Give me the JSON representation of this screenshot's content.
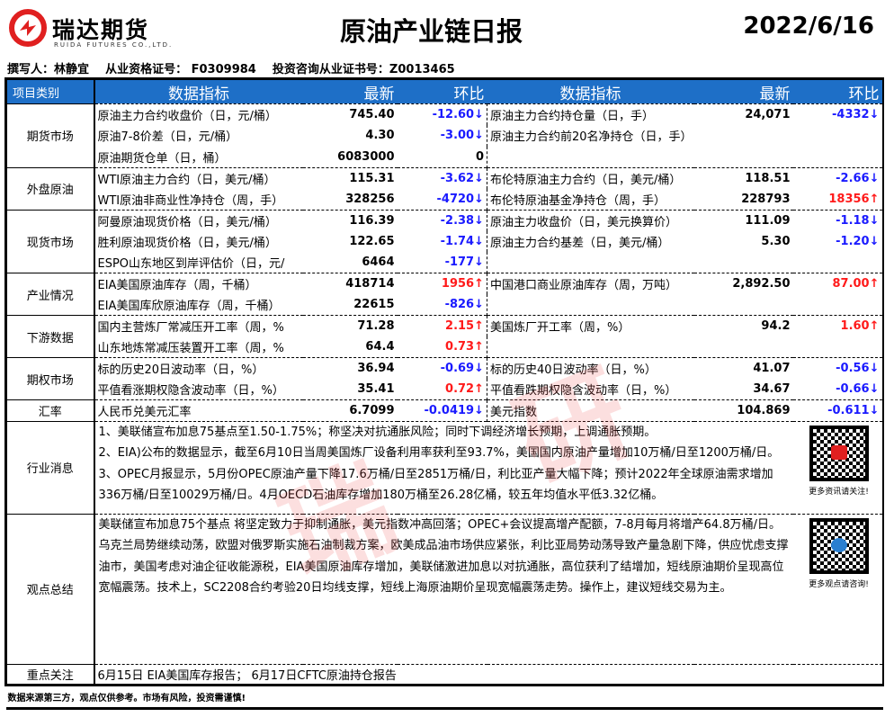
{
  "header": {
    "logo_cn": "瑞达期货",
    "logo_en": "RUIDA FUTURES CO.,LTD.",
    "title": "原油产业链日报",
    "date": "2022/6/16",
    "brand_color": "#e02020"
  },
  "author_line": "撰写人：林静宜    从业资格证号： F0309984    投资咨询从业证书号：Z0013465",
  "columns": {
    "category": "项目类别",
    "metric": "数据指标",
    "latest": "最新",
    "change": "环比",
    "metric2": "数据指标",
    "latest2": "最新",
    "change2": "环比",
    "header_color": "#1e6fc7"
  },
  "sections": [
    {
      "category": "期货市场",
      "rows": [
        [
          "原油主力合约收盘价（日，元/桶）",
          "745.40",
          "-12.60↓",
          "dn",
          "原油主力合约持仓量（日，手）",
          "24,071",
          "-4332↓",
          "dn"
        ],
        [
          "原油7-8价差（日，元/桶）",
          "4.30",
          "-3.00↓",
          "dn",
          "原油主力合约前20名净持仓（日，手）",
          "",
          "",
          ""
        ],
        [
          "原油期货仓单（日，桶）",
          "6083000",
          "0",
          "",
          "",
          "",
          "",
          ""
        ]
      ]
    },
    {
      "category": "外盘原油",
      "rows": [
        [
          "WTI原油主力合约（日，美元/桶）",
          "115.31",
          "-3.62↓",
          "dn",
          "布伦特原油主力合约（日，美元/桶）",
          "118.51",
          "-2.66↓",
          "dn"
        ],
        [
          " WTI原油非商业性净持仓（周，手）",
          "328256",
          "-4720↓",
          "dn",
          "布伦特原油基金净持仓（周，手）",
          "228793",
          "18356↑",
          "up"
        ]
      ]
    },
    {
      "category": "现货市场",
      "rows": [
        [
          "阿曼原油现货价格（日，美元/桶）",
          "116.39",
          "-2.38↓",
          "dn",
          "原油主力收盘价（日，美元换算价）",
          "111.09",
          "-1.18↓",
          "dn"
        ],
        [
          "胜利原油现货价格（日，美元/桶）",
          "122.65",
          "-1.74↓",
          "dn",
          "原油主力合约基差（日，美元/桶）",
          "5.30",
          "-1.20↓",
          "dn"
        ],
        [
          "ESPO山东地区到岸评估价（日，元/",
          "6464",
          "-177↓",
          "dn",
          "",
          "",
          "",
          ""
        ]
      ]
    },
    {
      "category": "产业情况",
      "rows": [
        [
          "EIA美国原油库存（周，千桶）",
          "418714",
          "1956↑",
          "up",
          "中国港口商业原油库存（周，万吨）",
          "2,892.50",
          "87.00↑",
          "up"
        ],
        [
          "EIA美国库欣原油库存（周，千桶）",
          "22615",
          "-826↓",
          "dn",
          "",
          "",
          "",
          ""
        ]
      ]
    },
    {
      "category": "下游数据",
      "rows": [
        [
          "国内主营炼厂常减压开工率（周，%",
          "71.28",
          "2.15↑",
          "up",
          "美国炼厂开工率（周，%）",
          "94.2",
          "1.60↑",
          "up"
        ],
        [
          "山东地炼常减压装置开工率（周，%",
          "64.4",
          "0.73↑",
          "up",
          "",
          "",
          "",
          ""
        ]
      ]
    },
    {
      "category": "期权市场",
      "rows": [
        [
          "标的历史20日波动率（日，%）",
          "36.94",
          "-0.69↓",
          "dn",
          "标的历史40日波动率（日，%）",
          "41.07",
          "-0.56↓",
          "dn"
        ],
        [
          "平值看涨期权隐含波动率（日，%）",
          "35.41",
          "0.72↑",
          "up",
          "平值看跌期权隐含波动率（日，%）",
          "34.67",
          "-0.66↓",
          "dn"
        ]
      ]
    },
    {
      "category": "汇率",
      "rows": [
        [
          "人民币兑美元汇率",
          "6.7099",
          "-0.0419↓",
          "dn",
          "美元指数",
          "104.869",
          "-0.611↓",
          "dn"
        ]
      ]
    }
  ],
  "news": {
    "category": "行业消息",
    "lines": [
      "1、美联储宣布加息75基点至1.50-1.75%；称坚决对抗通胀风险；同时下调经济增长预期，上调通胀预期。",
      "2、EIA)公布的数据显示，截至6月10日当周美国炼厂设备利用率获利至93.7%，美国国内原油产量增加10万桶/日至1200万桶/日。",
      "3、OPEC月报显示，5月份OPEC原油产量下降17.6万桶/日至2851万桶/日，利比亚产量大幅下降；预计2022年全球原油需求增加336万桶/日至10029万桶/日。4月OECD石油库存增加180万桶至26.28亿桶，较五年均值水平低3.32亿桶。"
    ],
    "qr_caption": "更多资讯请关注!"
  },
  "summary": {
    "category": "观点总结",
    "text": "美联储宣布加息75个基点 将坚定致力于抑制通胀，美元指数冲高回落；OPEC+会议提高增产配额，7-8月每月将增产64.8万桶/日。乌克兰局势继续动荡，欧盟对俄罗斯实施石油制裁方案，欧美成品油市场供应紧张，利比亚局势动荡导致产量急剧下降，供应忧虑支撑油市，美国考虑对油企征收能源税，EIA美国原油库存增加，美联储激进加息以对抗通胀，高位获利了结增加，短线原油期价呈现高位宽幅震荡。技术上，SC2208合约考验20日均线支撑，短线上海原油期价呈现宽幅震荡走势。操作上，建议短线交易为主。",
    "qr_caption": "更多观点请咨询!"
  },
  "focus": {
    "category": "重点关注",
    "text": "6月15日 EIA美国库存报告； 6月17日CFTC原油持仓报告"
  },
  "footer": "数据来源第三方，观点仅供参考。市场有风险，投资需谨慎!",
  "watermark": "瑞达研究",
  "colors": {
    "down": "#1a1aff",
    "up": "#ff1a1a"
  }
}
